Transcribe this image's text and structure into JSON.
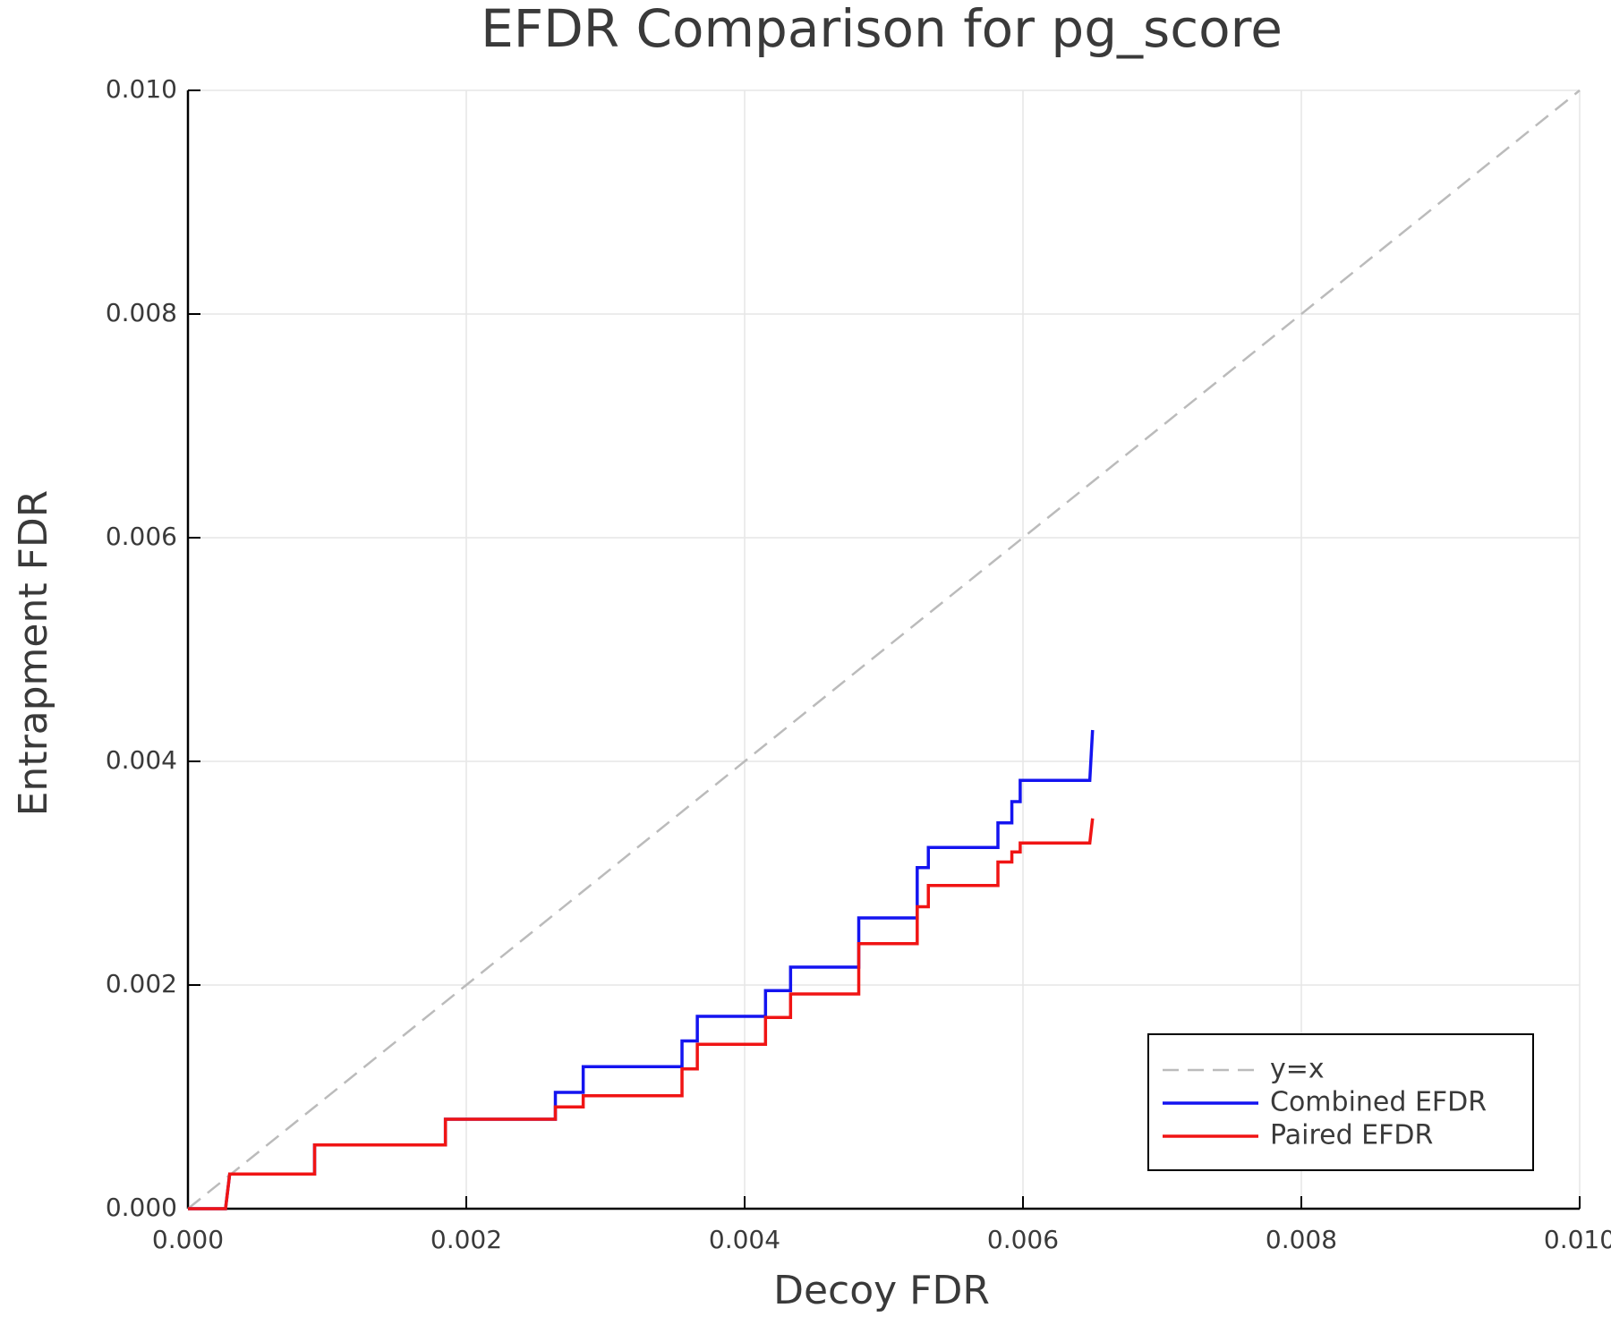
{
  "chart_data": {
    "type": "line",
    "title": "EFDR Comparison for pg_score",
    "x_label": "Decoy FDR",
    "y_label": "Entrapment FDR",
    "xlim": [
      0,
      0.01
    ],
    "ylim": [
      0,
      0.01
    ],
    "xticks": [
      {
        "value": 0,
        "label": "0.000"
      },
      {
        "value": 0.002,
        "label": "0.002"
      },
      {
        "value": 0.004,
        "label": "0.004"
      },
      {
        "value": 0.006,
        "label": "0.006"
      },
      {
        "value": 0.008,
        "label": "0.008"
      },
      {
        "value": 0.01,
        "label": "0.010"
      }
    ],
    "yticks": [
      {
        "value": 0,
        "label": "0.000"
      },
      {
        "value": 0.002,
        "label": "0.002"
      },
      {
        "value": 0.004,
        "label": "0.004"
      },
      {
        "value": 0.006,
        "label": "0.006"
      },
      {
        "value": 0.008,
        "label": "0.008"
      },
      {
        "value": 0.01,
        "label": "0.010"
      }
    ],
    "grid": true,
    "legend": "bottom-right",
    "series": [
      {
        "name": "y=x",
        "color": "#bbbbbb",
        "dashed": true,
        "x": [
          0,
          0.01
        ],
        "values": [
          0,
          0.01
        ]
      },
      {
        "name": "Combined EFDR",
        "color": "#1414f0",
        "x": [
          0,
          0.00027,
          0.0003,
          0.00091,
          0.00091,
          0.00185,
          0.00185,
          0.00264,
          0.00264,
          0.00284,
          0.00284,
          0.00355,
          0.00355,
          0.00366,
          0.00366,
          0.00415,
          0.00415,
          0.00433,
          0.00433,
          0.00482,
          0.00482,
          0.00524,
          0.00524,
          0.00532,
          0.00532,
          0.00582,
          0.00582,
          0.00592,
          0.00592,
          0.00598,
          0.00598,
          0.00648,
          0.0065
        ],
        "values": [
          0,
          0,
          0.00031,
          0.00031,
          0.00057,
          0.00057,
          0.0008,
          0.0008,
          0.00104,
          0.00104,
          0.00127,
          0.00127,
          0.0015,
          0.0015,
          0.00172,
          0.00172,
          0.00195,
          0.00195,
          0.00216,
          0.00216,
          0.0026,
          0.0026,
          0.00305,
          0.00305,
          0.00323,
          0.00323,
          0.00345,
          0.00345,
          0.00364,
          0.00364,
          0.00383,
          0.00383,
          0.00428
        ]
      },
      {
        "name": "Paired EFDR",
        "color": "#f01414",
        "x": [
          0,
          0.00027,
          0.0003,
          0.00091,
          0.00091,
          0.00185,
          0.00185,
          0.00264,
          0.00264,
          0.00284,
          0.00284,
          0.00355,
          0.00355,
          0.00366,
          0.00366,
          0.00415,
          0.00415,
          0.00433,
          0.00433,
          0.00482,
          0.00482,
          0.00524,
          0.00524,
          0.00532,
          0.00532,
          0.00582,
          0.00582,
          0.00592,
          0.00592,
          0.00598,
          0.00598,
          0.00648,
          0.0065
        ],
        "values": [
          0,
          0,
          0.00031,
          0.00031,
          0.00057,
          0.00057,
          0.0008,
          0.0008,
          0.00091,
          0.00091,
          0.00101,
          0.00101,
          0.00125,
          0.00125,
          0.00147,
          0.00147,
          0.00171,
          0.00171,
          0.00192,
          0.00192,
          0.00237,
          0.00237,
          0.0027,
          0.0027,
          0.00289,
          0.00289,
          0.0031,
          0.0031,
          0.00319,
          0.00319,
          0.00327,
          0.00327,
          0.00349
        ]
      }
    ]
  }
}
